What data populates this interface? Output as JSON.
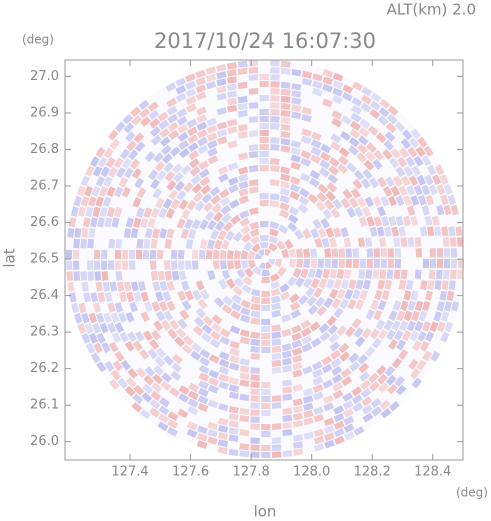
{
  "chart_data": {
    "type": "radar-ppi",
    "title": "2017/10/24 16:07:30",
    "subtitle": "ALT(km) 2.0",
    "x_label": "lon",
    "y_label": "lat",
    "x_unit": "(deg)",
    "y_unit": "(deg)",
    "xlim": [
      127.185,
      128.5
    ],
    "ylim": [
      25.95,
      27.045
    ],
    "xticks": [
      127.4,
      127.6,
      127.8,
      {
        "value": 128.0,
        "label": "128.0"
      },
      128.2,
      128.4
    ],
    "yticks": [
      {
        "value": 26.0,
        "label": "26.0"
      },
      26.1,
      26.2,
      26.3,
      26.4,
      26.5,
      26.6,
      26.7,
      26.8,
      26.9,
      {
        "value": 27.0,
        "label": "27.0"
      }
    ]
  }
}
